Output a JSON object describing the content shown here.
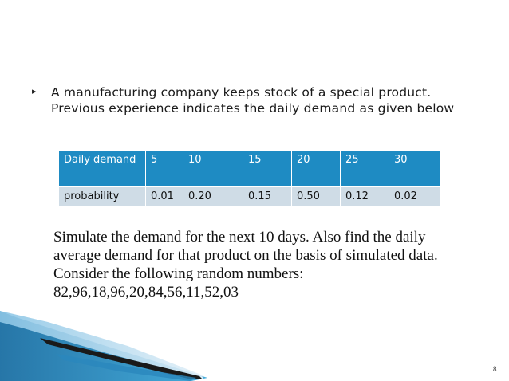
{
  "bullet": {
    "marker": "▸",
    "text": "A manufacturing company keeps stock of a special product. Previous experience indicates the daily demand as given below"
  },
  "table": {
    "header": [
      "Daily demand",
      "5",
      "10",
      "15",
      "20",
      "25",
      "30"
    ],
    "row": [
      "probability",
      "0.01",
      "0.20",
      "0.15",
      "0.50",
      "0.12",
      "0.02"
    ]
  },
  "problem": {
    "lines": [
      "Simulate the demand for the next 10 days. Also find the daily",
      "average demand for that product on the basis of simulated data.",
      "Consider the following random numbers:",
      "82,96,18,96,20,84,56,11,52,03"
    ]
  },
  "page_number": "8",
  "colors": {
    "table_header_bg": "#1e8bc3",
    "table_row_bg": "#cfdce6",
    "deco_blue": "#1b7bb0"
  }
}
